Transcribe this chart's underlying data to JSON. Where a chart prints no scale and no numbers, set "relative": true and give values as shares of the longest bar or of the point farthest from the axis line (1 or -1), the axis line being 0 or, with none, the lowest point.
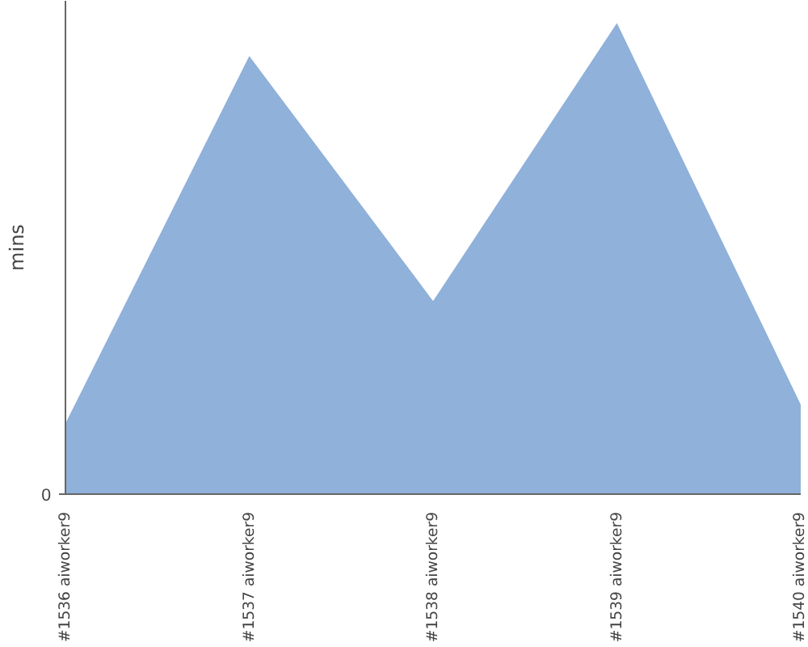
{
  "chart_data": {
    "type": "area",
    "relative": true,
    "ylabel": "mins",
    "categories": [
      "#1536 aiworker9",
      "#1537 aiworker9",
      "#1538 aiworker9",
      "#1539 aiworker9",
      "#1540 aiworker9"
    ],
    "values": [
      0.15,
      0.93,
      0.41,
      1,
      0.19
    ],
    "color": "#8fb1da",
    "annotations": [
      "0"
    ],
    "grid": false
  }
}
